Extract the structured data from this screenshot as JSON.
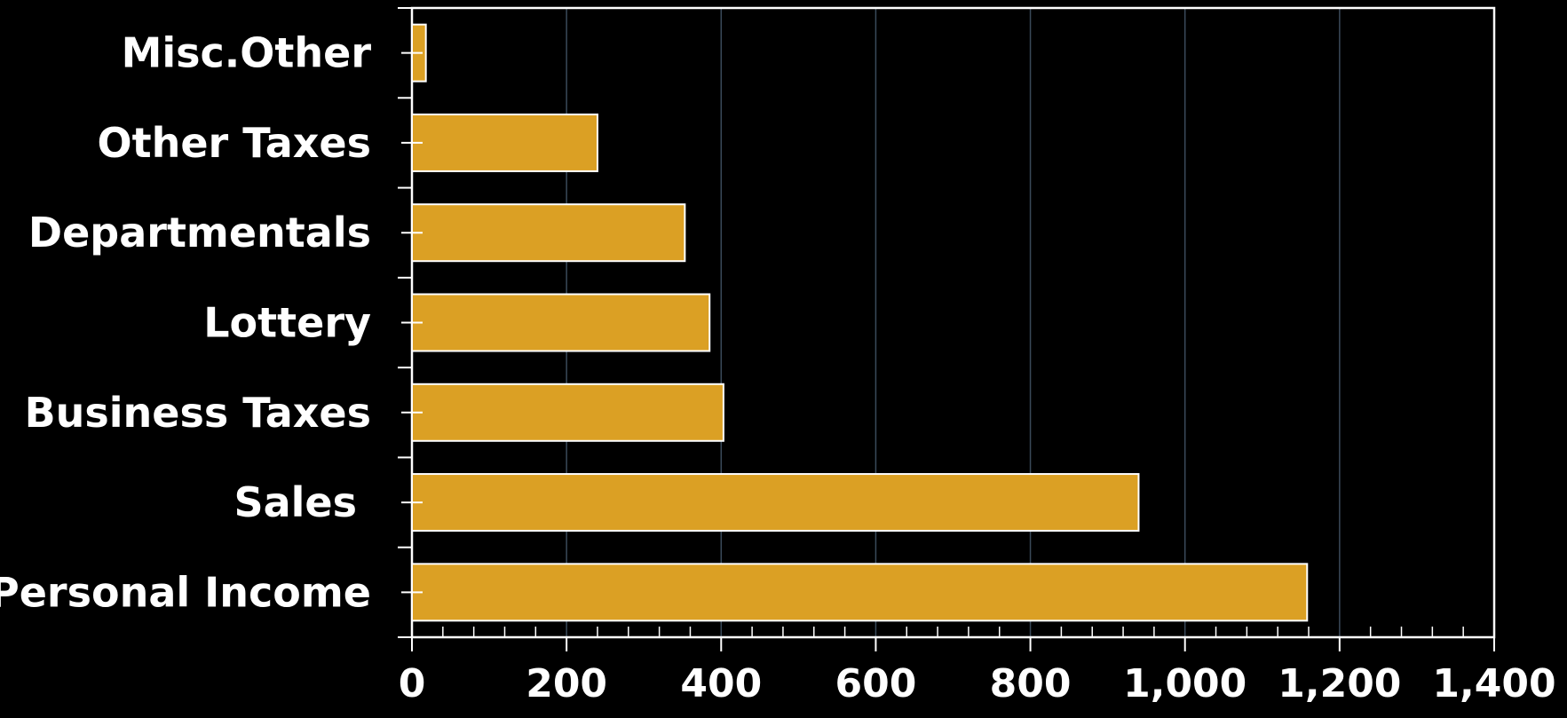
{
  "chart_data": {
    "type": "bar",
    "orientation": "horizontal",
    "categories": [
      "Personal Income",
      "Sales ",
      "Business Taxes",
      "Lottery",
      "Departmentals",
      "Other Taxes",
      "Misc.Other"
    ],
    "values": [
      1158,
      940,
      403,
      385,
      353,
      240,
      18
    ],
    "xlim": [
      0,
      1400
    ],
    "xticks": [
      "0",
      "200",
      "400",
      "600",
      "800",
      "1,000",
      "1,200",
      "1,400"
    ],
    "xtick_values": [
      0,
      200,
      400,
      600,
      800,
      1000,
      1200,
      1400
    ],
    "grid": "vertical",
    "legend": "none",
    "title": "",
    "xlabel": "",
    "ylabel": ""
  },
  "colors": {
    "background": "#000000",
    "bar_fill": "#DBA024",
    "bar_stroke": "#FFFFFF",
    "grid": "#3A4A5A",
    "axis": "#FFFFFF",
    "text": "#FFFFFF"
  }
}
